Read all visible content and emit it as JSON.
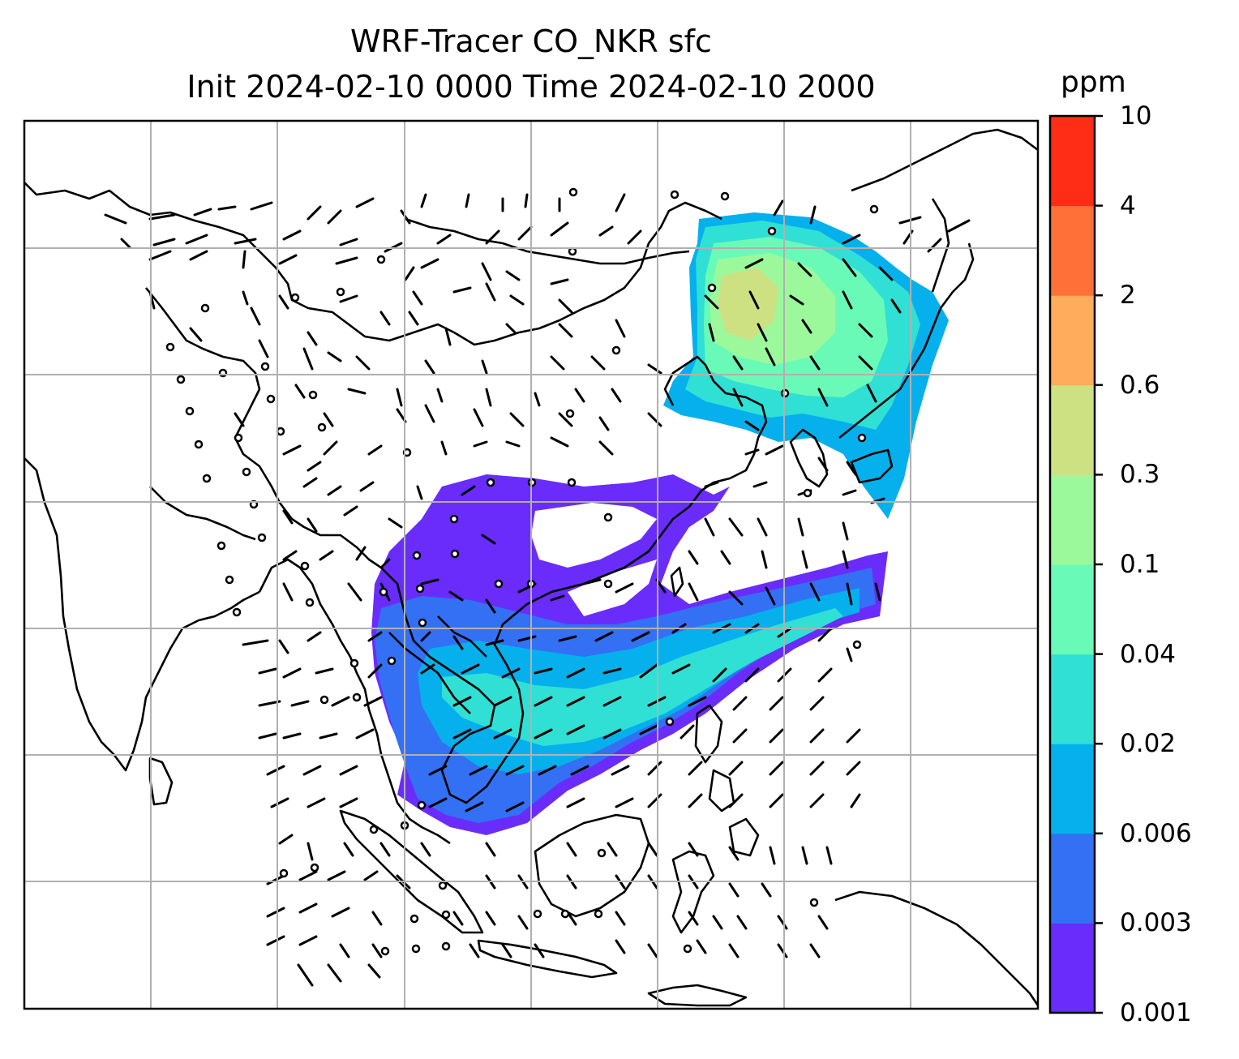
{
  "title": {
    "line1": "WRF-Tracer CO_NKR sfc",
    "line2": "Init 2024-02-10 0000 Time 2024-02-10 2000"
  },
  "colorbar": {
    "unit": "ppm",
    "levels": [
      "0.001",
      "0.003",
      "0.006",
      "0.02",
      "0.04",
      "0.1",
      "0.3",
      "0.6",
      "2",
      "4",
      "10"
    ],
    "colors": [
      "#6a2cfa",
      "#3370f4",
      "#06b0ec",
      "#30e0d5",
      "#6afab8",
      "#9bf99c",
      "#cde183",
      "#ffac5c",
      "#ff7038",
      "#ff2c16"
    ]
  },
  "map": {
    "field": "CO_NKR tracer concentration",
    "overlays": [
      "coastlines",
      "country-borders",
      "wind-barbs",
      "lat-lon-grid"
    ]
  }
}
